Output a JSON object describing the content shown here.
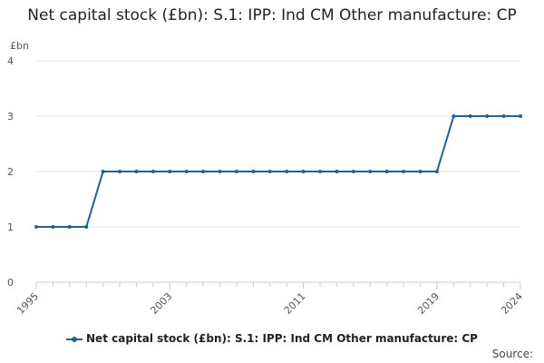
{
  "page": {
    "title": "Net capital stock (£bn): S.1: IPP: Ind CM Other manufacture: CP",
    "unit_label": "£bn",
    "source_label": "Source:"
  },
  "colors": {
    "series": "#206095",
    "grid": "#e0e0e0",
    "axis": "#cccccc"
  },
  "chart_data": {
    "type": "line",
    "title": "Net capital stock (£bn): S.1: IPP: Ind CM Other manufacture: CP",
    "ylabel": "£bn",
    "xlabel": "",
    "ylim": [
      0,
      4
    ],
    "yticks": [
      0,
      1,
      2,
      3,
      4
    ],
    "xlim": [
      1995,
      2024
    ],
    "xticks": [
      1995,
      2003,
      2011,
      2019,
      2024
    ],
    "grid": true,
    "legend_position": "bottom",
    "series": [
      {
        "name": "Net capital stock (£bn): S.1: IPP: Ind CM Other manufacture: CP",
        "x": [
          1995,
          1996,
          1997,
          1998,
          1999,
          2000,
          2001,
          2002,
          2003,
          2004,
          2005,
          2006,
          2007,
          2008,
          2009,
          2010,
          2011,
          2012,
          2013,
          2014,
          2015,
          2016,
          2017,
          2018,
          2019,
          2020,
          2021,
          2022,
          2023,
          2024
        ],
        "values": [
          1,
          1,
          1,
          1,
          2,
          2,
          2,
          2,
          2,
          2,
          2,
          2,
          2,
          2,
          2,
          2,
          2,
          2,
          2,
          2,
          2,
          2,
          2,
          2,
          2,
          3,
          3,
          3,
          3,
          3
        ]
      }
    ]
  }
}
